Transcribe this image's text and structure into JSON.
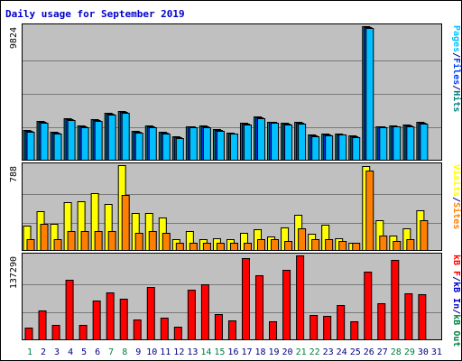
{
  "chart_data": {
    "type": "bar",
    "title": "Daily usage for September 2019",
    "days": [
      "1",
      "2",
      "3",
      "4",
      "5",
      "6",
      "7",
      "8",
      "9",
      "10",
      "11",
      "12",
      "13",
      "14",
      "15",
      "16",
      "17",
      "18",
      "19",
      "20",
      "21",
      "22",
      "23",
      "24",
      "25",
      "26",
      "27",
      "28",
      "29",
      "30",
      "31"
    ],
    "weekend_days": [
      1,
      7,
      8,
      14,
      15,
      21,
      22,
      28,
      29
    ],
    "colors": {
      "background": "#ffffff",
      "plot_bg": "#c0c0c0",
      "title": "#0000cc",
      "weekday_label": "#000080",
      "weekend_label": "#008040",
      "gridline": "#7a7a7a",
      "pages": "#00c0ff",
      "files": "#0040ff",
      "hits": "#008080",
      "visits": "#ffff00",
      "sites": "#ff8000",
      "kb_in": "#0000cc",
      "kb_out": "#008040",
      "kb_f": "#ff0000"
    },
    "panels": [
      {
        "name": "hits-files-pages",
        "ymax_label": "9824",
        "ymax": 9824,
        "legend": [
          {
            "text": "Pages",
            "color_key": "pages"
          },
          {
            "text": "/",
            "color_key": "weekday_label"
          },
          {
            "text": "Files",
            "color_key": "files"
          },
          {
            "text": "/",
            "color_key": "weekday_label"
          },
          {
            "text": "Hits",
            "color_key": "hits"
          }
        ],
        "series": [
          {
            "key": "hits",
            "values": [
              2170,
              2825,
              2051,
              3067,
              2509,
              3004,
              3432,
              3577,
              2112,
              2523,
              2039,
              1744,
              2489,
              2523,
              2240,
              2012,
              2714,
              3153,
              2815,
              2713,
              2778,
              1838,
              1916,
              1949,
              1782,
              9824,
              2489,
              2546,
              2574,
              2780,
              null
            ]
          },
          {
            "key": "files",
            "values": [
              2110,
              2765,
              1991,
              3007,
              2449,
              2944,
              3372,
              3517,
              2052,
              2463,
              1979,
              1684,
              2429,
              2463,
              2180,
              1952,
              2654,
              3093,
              2755,
              2653,
              2718,
              1778,
              1856,
              1889,
              1722,
              9760,
              2429,
              2486,
              2514,
              2720,
              null
            ]
          },
          {
            "key": "pages",
            "values": [
              2050,
              2705,
              1931,
              2947,
              2389,
              2884,
              3312,
              3457,
              1992,
              2403,
              1919,
              1624,
              2369,
              2403,
              2120,
              1892,
              2594,
              3033,
              2695,
              2593,
              2658,
              1718,
              1796,
              1829,
              1662,
              9700,
              2369,
              2426,
              2454,
              2660,
              null
            ]
          }
        ]
      },
      {
        "name": "visits-sites",
        "ymax_label": "788",
        "ymax": 788,
        "legend": [
          {
            "text": "Visits",
            "color_key": "visits"
          },
          {
            "text": "/",
            "color_key": "weekday_label"
          },
          {
            "text": "Sites",
            "color_key": "sites"
          }
        ],
        "series": [
          {
            "key": "visits",
            "values": [
              230,
              362,
              243,
              446,
              452,
              530,
              430,
              788,
              343,
              344,
              298,
              104,
              177,
              104,
              112,
              104,
              163,
              191,
              122,
              209,
              328,
              153,
              232,
              112,
              64,
              776,
              278,
              130,
              198,
              366,
              null
            ]
          },
          {
            "key": "sites",
            "values": [
              104,
              244,
              104,
              177,
              177,
              177,
              177,
              514,
              157,
              177,
              157,
              64,
              64,
              64,
              64,
              64,
              64,
              104,
              104,
              85,
              198,
              104,
              104,
              85,
              64,
              740,
              130,
              85,
              104,
              278,
              null
            ]
          }
        ]
      },
      {
        "name": "kbf-kbin-kbout",
        "ymax_label": "137290",
        "ymax": 137290,
        "legend": [
          {
            "text": "kB F",
            "color_key": "kb_f"
          },
          {
            "text": "/",
            "color_key": "weekday_label"
          },
          {
            "text": "kB In",
            "color_key": "kb_in"
          },
          {
            "text": "/",
            "color_key": "weekday_label"
          },
          {
            "text": "kB Out",
            "color_key": "kb_out"
          }
        ],
        "series": [
          {
            "key": "kb_f",
            "values": [
              18900,
              47300,
              23200,
              97600,
              23200,
              63800,
              77300,
              66200,
              33100,
              85100,
              35500,
              20400,
              81200,
              89700,
              41700,
              30800,
              133000,
              105000,
              29300,
              114000,
              137290,
              39700,
              37800,
              56700,
              29300,
              110000,
              59600,
              130000,
              75700,
              73300,
              null
            ]
          }
        ]
      }
    ]
  }
}
